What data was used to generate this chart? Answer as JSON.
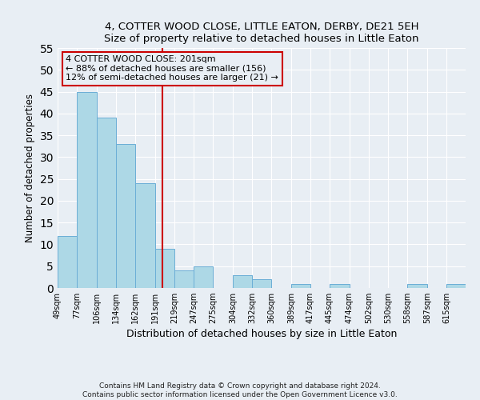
{
  "title": "4, COTTER WOOD CLOSE, LITTLE EATON, DERBY, DE21 5EH",
  "subtitle": "Size of property relative to detached houses in Little Eaton",
  "xlabel": "Distribution of detached houses by size in Little Eaton",
  "ylabel": "Number of detached properties",
  "bin_labels": [
    "49sqm",
    "77sqm",
    "106sqm",
    "134sqm",
    "162sqm",
    "191sqm",
    "219sqm",
    "247sqm",
    "275sqm",
    "304sqm",
    "332sqm",
    "360sqm",
    "389sqm",
    "417sqm",
    "445sqm",
    "474sqm",
    "502sqm",
    "530sqm",
    "558sqm",
    "587sqm",
    "615sqm"
  ],
  "bin_edges": [
    49,
    77,
    106,
    134,
    162,
    191,
    219,
    247,
    275,
    304,
    332,
    360,
    389,
    417,
    445,
    474,
    502,
    530,
    558,
    587,
    615,
    643
  ],
  "bar_heights": [
    12,
    45,
    39,
    33,
    24,
    9,
    4,
    5,
    0,
    3,
    2,
    0,
    1,
    0,
    1,
    0,
    0,
    0,
    1,
    0,
    1
  ],
  "bar_color": "#add8e6",
  "bar_edgecolor": "#6baed6",
  "vline_x": 201,
  "vline_color": "#cc0000",
  "annotation_line1": "4 COTTER WOOD CLOSE: 201sqm",
  "annotation_line2": "← 88% of detached houses are smaller (156)",
  "annotation_line3": "12% of semi-detached houses are larger (21) →",
  "annotation_box_color": "#cc0000",
  "ylim": [
    0,
    55
  ],
  "yticks": [
    0,
    5,
    10,
    15,
    20,
    25,
    30,
    35,
    40,
    45,
    50,
    55
  ],
  "bg_color": "#e8eef4",
  "footnote1": "Contains HM Land Registry data © Crown copyright and database right 2024.",
  "footnote2": "Contains public sector information licensed under the Open Government Licence v3.0."
}
